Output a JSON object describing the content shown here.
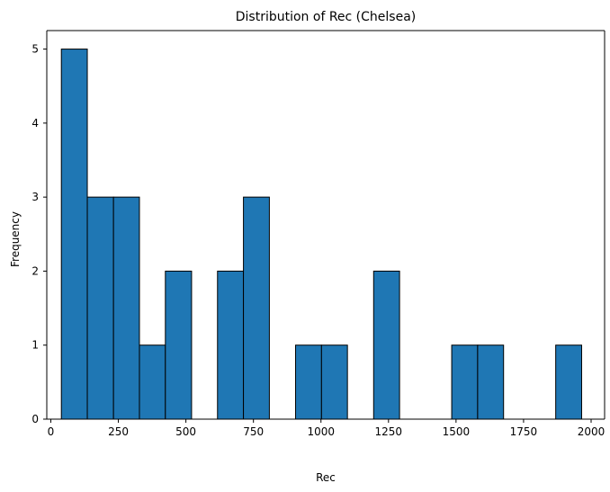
{
  "chart_data": {
    "type": "bar",
    "title": "Distribution of Rec (Chelsea)",
    "xlabel": "Rec",
    "ylabel": "Frequency",
    "xlim": [
      -15,
      2050
    ],
    "ylim": [
      0,
      5.25
    ],
    "xticks": [
      0,
      250,
      500,
      750,
      1000,
      1250,
      1500,
      1750,
      2000
    ],
    "xtick_labels": [
      "0",
      "250",
      "500",
      "750",
      "1000",
      "1250",
      "1500",
      "1750",
      "2000"
    ],
    "yticks": [
      0,
      1,
      2,
      3,
      4,
      5
    ],
    "ytick_labels": [
      "0",
      "1",
      "2",
      "3",
      "4",
      "5"
    ],
    "grid": false,
    "bins": [
      {
        "x0": 39,
        "x1": 135,
        "count": 5
      },
      {
        "x0": 135,
        "x1": 232,
        "count": 3
      },
      {
        "x0": 232,
        "x1": 328,
        "count": 3
      },
      {
        "x0": 328,
        "x1": 424,
        "count": 1
      },
      {
        "x0": 424,
        "x1": 521,
        "count": 2
      },
      {
        "x0": 521,
        "x1": 617,
        "count": 0
      },
      {
        "x0": 617,
        "x1": 713,
        "count": 2
      },
      {
        "x0": 713,
        "x1": 809,
        "count": 3
      },
      {
        "x0": 809,
        "x1": 906,
        "count": 0
      },
      {
        "x0": 906,
        "x1": 1002,
        "count": 1
      },
      {
        "x0": 1002,
        "x1": 1098,
        "count": 1
      },
      {
        "x0": 1098,
        "x1": 1195,
        "count": 0
      },
      {
        "x0": 1195,
        "x1": 1291,
        "count": 2
      },
      {
        "x0": 1291,
        "x1": 1387,
        "count": 0
      },
      {
        "x0": 1387,
        "x1": 1484,
        "count": 0
      },
      {
        "x0": 1484,
        "x1": 1580,
        "count": 1
      },
      {
        "x0": 1580,
        "x1": 1676,
        "count": 1
      },
      {
        "x0": 1676,
        "x1": 1773,
        "count": 0
      },
      {
        "x0": 1773,
        "x1": 1869,
        "count": 0
      },
      {
        "x0": 1869,
        "x1": 1965,
        "count": 1
      }
    ],
    "colors": {
      "bar_fill": "#1f77b4",
      "bar_edge": "#000000",
      "axis": "#000000",
      "background": "#ffffff"
    }
  }
}
